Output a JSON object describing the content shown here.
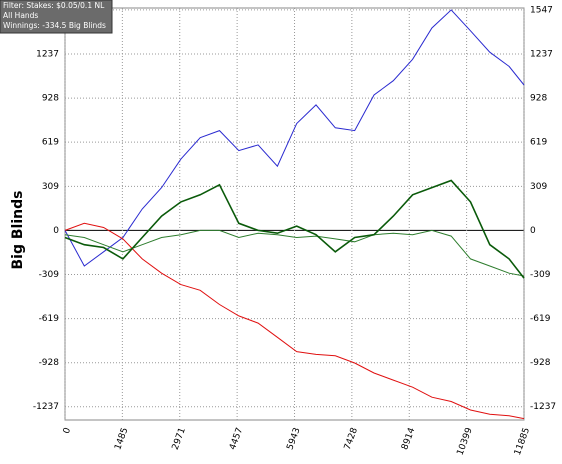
{
  "chart_data": {
    "type": "line",
    "y_label": "Big Blinds",
    "annotations": [
      "Filter: Stakes: $0.05/0.1 NL",
      "All Hands",
      "Winnings: -334.5 Big Blinds"
    ],
    "x": [
      0,
      500,
      1000,
      1500,
      2000,
      2500,
      3000,
      3500,
      4000,
      4500,
      5000,
      5500,
      6000,
      6500,
      7000,
      7500,
      8000,
      8500,
      9000,
      9500,
      10000,
      10500,
      11000,
      11500,
      11885
    ],
    "series": [
      {
        "color": "#2a2ad0",
        "values": [
          0,
          -250,
          -150,
          -50,
          150,
          300,
          500,
          650,
          700,
          560,
          600,
          450,
          750,
          880,
          720,
          700,
          950,
          1050,
          1200,
          1420,
          1547,
          1400,
          1250,
          1150,
          1020
        ]
      },
      {
        "color": "#2e7d2e",
        "values": [
          -30,
          -50,
          -100,
          -150,
          -100,
          -50,
          -30,
          0,
          0,
          -50,
          -20,
          -30,
          -50,
          -40,
          -60,
          -80,
          -30,
          -20,
          -30,
          0,
          -40,
          -200,
          -250,
          -300,
          -320
        ]
      },
      {
        "color": "#e01010",
        "values": [
          0,
          50,
          20,
          -60,
          -200,
          -300,
          -380,
          -420,
          -520,
          -600,
          -650,
          -750,
          -850,
          -870,
          -880,
          -930,
          -1000,
          -1050,
          -1100,
          -1170,
          -1200,
          -1260,
          -1290,
          -1300,
          -1320
        ]
      },
      {
        "color": "#0a5a0a",
        "values": [
          -50,
          -100,
          -120,
          -200,
          -50,
          100,
          200,
          250,
          320,
          50,
          0,
          -20,
          30,
          -30,
          -150,
          -50,
          -30,
          100,
          250,
          300,
          350,
          200,
          -100,
          -200,
          -334.5
        ]
      }
    ],
    "xlim": [
      0,
      11885
    ],
    "xticks": [
      0,
      1485,
      2971,
      4457,
      5943,
      7428,
      8914,
      10399,
      11885
    ],
    "ylim": [
      -1330,
      1560
    ],
    "yticks": [
      -1237,
      -928,
      -619,
      -309,
      0,
      309,
      619,
      928,
      1237,
      1547
    ],
    "grid": true
  }
}
